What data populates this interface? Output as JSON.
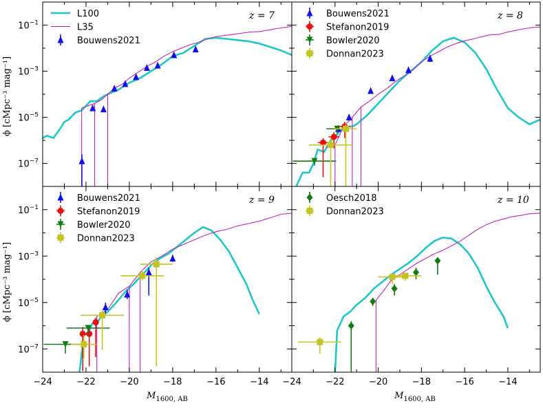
{
  "figure": {
    "xlabel": "M",
    "xlabel_sub": "1600, AB",
    "ylabel": "ϕ [cMpc⁻³ mag⁻¹]"
  },
  "colors": {
    "L100": "#1ec7c7",
    "L35": "#c21fc2",
    "Bouwens2021": "#1010ee",
    "Stefanon2019": "#e81010",
    "Bowler2020": "#117a11",
    "Donnan2023": "#c4c420",
    "Oesch2018": "#117a11"
  },
  "chart_data": [
    {
      "type": "line",
      "panel": "top-left",
      "z_label": "z = 7",
      "xlim": [
        -24,
        -12.5
      ],
      "ylim_log10": [
        -8,
        0
      ],
      "ylim": [
        1e-08,
        1
      ],
      "xticks": [],
      "yticks": [
        "10^-1",
        "10^-3",
        "10^-5",
        "10^-7"
      ],
      "legend": [
        "L100",
        "L35",
        "Bouwens2021"
      ],
      "series": [
        {
          "name": "L100",
          "style": "line",
          "x": [
            -24,
            -23.8,
            -23.5,
            -23.2,
            -23,
            -22.8,
            -22.5,
            -22.2,
            -22,
            -21.8,
            -21.5,
            -21.2,
            -21,
            -20.5,
            -20,
            -19.5,
            -19,
            -18.5,
            -18,
            -17.5,
            -17,
            -16.5,
            -16,
            -15.5,
            -15,
            -14.5,
            -14,
            -13.5,
            -13,
            -12.5
          ],
          "y": [
            -5.9,
            -5.8,
            -5.9,
            -5.5,
            -5.2,
            -5.1,
            -4.8,
            -4.7,
            -4.5,
            -4.3,
            -4.3,
            -4.1,
            -4.0,
            -3.8,
            -3.5,
            -3.3,
            -3.0,
            -2.7,
            -2.35,
            -2.2,
            -1.9,
            -1.6,
            -1.55,
            -1.6,
            -1.65,
            -1.7,
            -1.8,
            -1.95,
            -2.1,
            -2.3
          ]
        },
        {
          "name": "L35",
          "style": "thin",
          "x": [
            -22.2,
            -21.9,
            -21.6,
            -21.3,
            -21.0,
            -20.7,
            -20.3,
            -20,
            -19.6,
            -19.2,
            -18.8,
            -18.4,
            -18,
            -17.6,
            -17.2,
            -16.8,
            -16.4,
            -16,
            -15.6,
            -15.2,
            -14.8,
            -14.4,
            -14,
            -13.6,
            -13.2,
            -12.8,
            -12.5
          ],
          "y": [
            -4.6,
            -4.5,
            -4.4,
            -4.25,
            -4.0,
            -3.75,
            -3.55,
            -3.3,
            -3.05,
            -2.8,
            -2.6,
            -2.35,
            -2.15,
            -2.0,
            -1.85,
            -1.75,
            -1.6,
            -1.5,
            -1.45,
            -1.4,
            -1.35,
            -1.3,
            -1.28,
            -1.22,
            -1.15,
            -1.1,
            -1.05
          ],
          "drops": [
            -22.2,
            -21.6,
            -21.0
          ]
        },
        {
          "name": "Bouwens2021",
          "style": "points",
          "x": [
            -22.19,
            -21.69,
            -21.19,
            -20.69,
            -20.19,
            -19.69,
            -19.19,
            -18.69,
            -17.94,
            -16.94
          ],
          "y": [
            -6.9,
            -4.6,
            -4.65,
            -3.75,
            -3.55,
            -3.25,
            -2.85,
            -2.75,
            -2.3,
            -2.05
          ],
          "yerr_lo": [
            1.4,
            0.1,
            0.1,
            0.08,
            0.08,
            0.08,
            0.08,
            0.08,
            0.08,
            0.12
          ],
          "yerr_hi": [
            0.3,
            0.1,
            0.1,
            0.08,
            0.08,
            0.08,
            0.08,
            0.08,
            0.08,
            0.12
          ]
        }
      ]
    },
    {
      "type": "line",
      "panel": "top-right",
      "z_label": "z = 8",
      "xlim": [
        -24,
        -12.5
      ],
      "ylim_log10": [
        -8,
        0
      ],
      "ylim": [
        1e-08,
        1
      ],
      "xticks": [],
      "yticks": [],
      "legend": [
        "Bouwens2021",
        "Stefanon2019",
        "Bowler2020",
        "Donnan2023"
      ],
      "series": [
        {
          "name": "L100",
          "style": "line",
          "x": [
            -23.8,
            -23.5,
            -23.2,
            -23,
            -22.8,
            -22.5,
            -22.2,
            -22,
            -21.8,
            -21.5,
            -21.2,
            -21,
            -20.5,
            -20,
            -19.5,
            -19,
            -18.5,
            -18,
            -17.5,
            -17,
            -16.5,
            -16,
            -15.5,
            -15,
            -14.5,
            -14,
            -13.5,
            -13,
            -12.5
          ],
          "y": [
            -8,
            -7.4,
            -7.4,
            -7.0,
            -6.4,
            -6.5,
            -6.0,
            -5.9,
            -5.6,
            -5.4,
            -5.4,
            -5.3,
            -4.9,
            -4.4,
            -3.9,
            -3.4,
            -3.0,
            -2.6,
            -2.1,
            -1.7,
            -1.55,
            -1.75,
            -2.2,
            -2.9,
            -3.8,
            -4.6,
            -5.0,
            -5.3,
            -5.1
          ]
        },
        {
          "name": "L35",
          "style": "thin",
          "x": [
            -22.4,
            -22.0,
            -21.6,
            -21.2,
            -20.8,
            -20.4,
            -20,
            -19.6,
            -19.2,
            -18.8,
            -18.4,
            -18,
            -17.6,
            -17.2,
            -16.8,
            -16.4,
            -16,
            -15.6,
            -15.2,
            -14.8,
            -14.4,
            -14,
            -13.6,
            -13.2,
            -12.8,
            -12.5
          ],
          "y": [
            -6.3,
            -6.2,
            -5.4,
            -5.0,
            -4.55,
            -4.3,
            -4.0,
            -3.75,
            -3.45,
            -3.2,
            -2.95,
            -2.6,
            -2.35,
            -2.15,
            -1.95,
            -1.8,
            -1.68,
            -1.6,
            -1.5,
            -1.42,
            -1.4,
            -1.3,
            -1.22,
            -1.15,
            -1.1,
            -1.08
          ],
          "drops": [
            -22.0,
            -21.2,
            -20.8
          ]
        },
        {
          "name": "Bouwens2021",
          "style": "points",
          "x": [
            -21.85,
            -21.35,
            -20.35,
            -19.35,
            -18.6,
            -17.6
          ],
          "y": [
            -5.5,
            -5.0,
            -3.85,
            -3.3,
            -2.95,
            -2.45
          ],
          "yerr_lo": [
            0.15,
            0.12,
            0.1,
            0.08,
            0.1,
            0.15
          ],
          "yerr_hi": [
            0.15,
            0.12,
            0.1,
            0.08,
            0.1,
            0.15
          ]
        },
        {
          "name": "Stefanon2019",
          "style": "circles",
          "x": [
            -22.55,
            -22.05,
            -21.55
          ],
          "y": [
            -6.1,
            -5.85,
            -5.4
          ],
          "yerr_lo": [
            1.5,
            0.5,
            0.5
          ],
          "yerr_hi": [
            0.2,
            0.2,
            0.2
          ],
          "xerr": [
            0.25,
            0.25,
            0.25
          ]
        },
        {
          "name": "Bowler2020",
          "style": "tri_down",
          "x": [
            -22.95,
            -21.9
          ],
          "y": [
            -6.9,
            -5.5
          ],
          "yerr_lo": [
            0.2,
            0.2
          ],
          "yerr_hi": [
            0.1,
            0.1
          ],
          "xerr": [
            1.0,
            0.5
          ]
        },
        {
          "name": "Donnan2023",
          "style": "squares",
          "x": [
            -22.2,
            -21.5
          ],
          "y": [
            -6.2,
            -5.5
          ],
          "yerr_lo": [
            1.8,
            2.5
          ],
          "yerr_hi": [
            0.3,
            0.2
          ],
          "xerr": [
            1.0,
            0.5
          ]
        }
      ]
    },
    {
      "type": "line",
      "panel": "bottom-left",
      "z_label": "z = 9",
      "xlim": [
        -24,
        -12.5
      ],
      "ylim_log10": [
        -8,
        0
      ],
      "ylim": [
        1e-08,
        1
      ],
      "xticks": [
        "−24",
        "−22",
        "−20",
        "−18",
        "−16",
        "−14"
      ],
      "yticks": [
        "10^-1",
        "10^-3",
        "10^-5",
        "10^-7"
      ],
      "legend": [
        "Bouwens2021",
        "Stefanon2019",
        "Bowler2020",
        "Donnan2023"
      ],
      "series": [
        {
          "name": "L100",
          "style": "line",
          "x": [
            -22.3,
            -22.1,
            -21.9,
            -21.7,
            -21.5,
            -21.3,
            -21,
            -20.6,
            -20.2,
            -19.8,
            -19.4,
            -19,
            -18.6,
            -18.2,
            -17.8,
            -17.4,
            -17,
            -16.6,
            -16.2,
            -15.8,
            -15.4,
            -15,
            -14.6,
            -14.3,
            -14
          ],
          "y": [
            -8,
            -6.4,
            -6.3,
            -5.9,
            -5.9,
            -5.6,
            -5.4,
            -5.0,
            -4.55,
            -4.2,
            -3.8,
            -3.4,
            -3.1,
            -2.9,
            -2.6,
            -2.3,
            -2.0,
            -1.75,
            -1.9,
            -2.3,
            -2.8,
            -3.5,
            -4.2,
            -4.9,
            -5.5
          ]
        },
        {
          "name": "L35",
          "style": "thin",
          "x": [
            -21.5,
            -21.0,
            -20.5,
            -20,
            -19.5,
            -19.0,
            -18.5,
            -18,
            -17.5,
            -17,
            -16.5,
            -16,
            -15.5,
            -15,
            -14.5,
            -14,
            -13.5,
            -13,
            -12.5
          ],
          "y": [
            -5.6,
            -5.3,
            -4.6,
            -4.3,
            -3.7,
            -3.25,
            -3.0,
            -2.7,
            -2.5,
            -2.3,
            -2.1,
            -1.95,
            -1.85,
            -1.7,
            -1.6,
            -1.5,
            -1.35,
            -1.2,
            -1.15
          ],
          "drops": [
            -21.5,
            -20.0,
            -19.5
          ]
        },
        {
          "name": "Bouwens2021",
          "style": "points",
          "x": [
            -21.1,
            -20.1,
            -19.1,
            -18.0
          ],
          "y": [
            -5.2,
            -4.65,
            -3.7,
            -3.1
          ],
          "yerr_lo": [
            0.3,
            0.2,
            1.0,
            0.15
          ],
          "yerr_hi": [
            0.2,
            0.2,
            0.2,
            0.15
          ]
        },
        {
          "name": "Stefanon2019",
          "style": "circles",
          "x": [
            -22.15,
            -21.85,
            -21.55
          ],
          "y": [
            -6.35,
            -6.35,
            -5.85
          ],
          "yerr_lo": [
            1.6,
            1.4,
            1.5
          ],
          "yerr_hi": [
            0.3,
            0.3,
            0.2
          ],
          "xerr": [
            0.15,
            0.15,
            0.15
          ]
        },
        {
          "name": "Bowler2020",
          "style": "tri_down",
          "x": [
            -22.95,
            -21.9
          ],
          "y": [
            -6.8,
            -6.1
          ],
          "yerr_lo": [
            0.4,
            0.3
          ],
          "yerr_hi": [
            0.1,
            0.1
          ],
          "xerr": [
            1.0,
            1.0
          ]
        },
        {
          "name": "Donnan2023",
          "style": "squares",
          "x": [
            -22.1,
            -21.25,
            -19.4,
            -18.75
          ],
          "y": [
            -6.8,
            -5.55,
            -3.85,
            -3.35
          ],
          "yerr_lo": [
            0.6,
            1.5,
            0.2,
            4.4
          ],
          "yerr_hi": [
            0.4,
            0.2,
            0.25,
            0.3
          ],
          "xerr": [
            0.6,
            1.0,
            1.0,
            0.75
          ]
        }
      ]
    },
    {
      "type": "line",
      "panel": "bottom-right",
      "z_label": "z = 10",
      "xlim": [
        -24,
        -12.5
      ],
      "ylim_log10": [
        -8,
        0
      ],
      "ylim": [
        1e-08,
        1
      ],
      "xticks": [
        "−24",
        "−22",
        "−20",
        "−18",
        "−16",
        "−14"
      ],
      "yticks": [],
      "legend": [
        "Oesch2018",
        "Donnan2023"
      ],
      "series": [
        {
          "name": "L100",
          "style": "line",
          "x": [
            -22.0,
            -21.9,
            -21.6,
            -21.3,
            -21,
            -20.6,
            -20.2,
            -19.8,
            -19.4,
            -19,
            -18.6,
            -18.2,
            -17.8,
            -17.4,
            -17,
            -16.6,
            -16.2,
            -15.8,
            -15.4,
            -15,
            -14.6,
            -14.2,
            -14
          ],
          "y": [
            -8,
            -6.2,
            -5.6,
            -5.4,
            -5.1,
            -4.8,
            -4.4,
            -4.1,
            -3.8,
            -3.55,
            -3.3,
            -3.0,
            -2.65,
            -2.35,
            -2.2,
            -2.25,
            -2.5,
            -2.9,
            -3.5,
            -4.3,
            -5.0,
            -5.6,
            -6.1
          ]
        },
        {
          "name": "L35",
          "style": "thin",
          "x": [
            -20.1,
            -19.8,
            -19.4,
            -19,
            -18.6,
            -18.2,
            -17.8,
            -17.4,
            -17,
            -16.6,
            -16.2,
            -15.8,
            -15.4,
            -15,
            -14.6,
            -14.2,
            -13.8,
            -13.4,
            -13,
            -12.5
          ],
          "y": [
            -4.9,
            -4.55,
            -4.05,
            -3.8,
            -3.55,
            -3.3,
            -3.1,
            -2.9,
            -2.75,
            -2.55,
            -2.35,
            -2.1,
            -1.85,
            -1.65,
            -1.5,
            -1.4,
            -1.3,
            -1.25,
            -1.18,
            -1.15
          ],
          "drops": [
            -20.1
          ]
        },
        {
          "name": "Oesch2018",
          "style": "diamonds",
          "x": [
            -21.25,
            -20.25,
            -19.25,
            -18.25,
            -17.25
          ],
          "y": [
            -6.0,
            -4.95,
            -4.4,
            -3.7,
            -3.2
          ],
          "yerr_lo": [
            2.0,
            0.2,
            0.3,
            0.3,
            0.6
          ],
          "yerr_hi": [
            0.2,
            0.15,
            0.2,
            0.2,
            0.1
          ]
        },
        {
          "name": "Donnan2023",
          "style": "squares",
          "x": [
            -22.7,
            -19.35,
            -18.75
          ],
          "y": [
            -6.7,
            -3.9,
            -3.85
          ],
          "yerr_lo": [
            0.5,
            0.3,
            0.2
          ],
          "yerr_hi": [
            0.2,
            0.1,
            0.1
          ],
          "xerr": [
            1.0,
            0.65,
            0.75
          ]
        }
      ]
    }
  ]
}
